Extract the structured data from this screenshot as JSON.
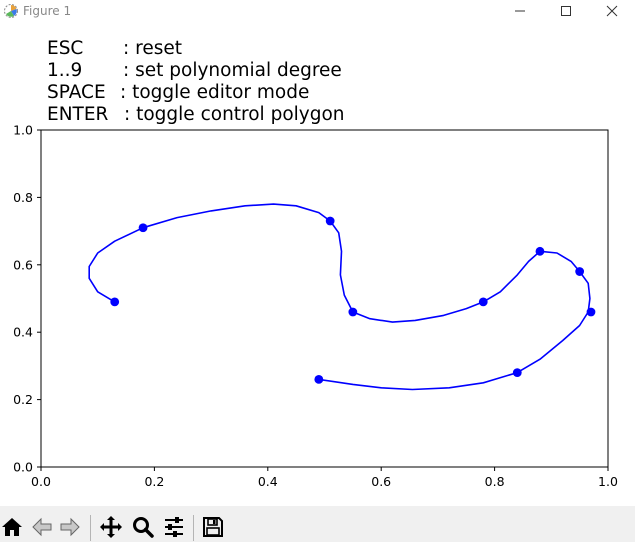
{
  "window": {
    "title": "Figure 1"
  },
  "help": [
    {
      "key": "ESC",
      "desc": ": reset"
    },
    {
      "key": "1..9",
      "desc": ": set polynomial degree"
    },
    {
      "key": "SPACE",
      "desc": ": toggle editor mode"
    },
    {
      "key": "ENTER",
      "desc": ": toggle control polygon"
    }
  ],
  "chart_data": {
    "type": "line",
    "xlim": [
      0.0,
      1.0
    ],
    "ylim": [
      0.0,
      1.0
    ],
    "xticks": [
      "0.0",
      "0.2",
      "0.4",
      "0.6",
      "0.8",
      "1.0"
    ],
    "yticks": [
      "0.0",
      "0.2",
      "0.4",
      "0.6",
      "0.8",
      "1.0"
    ],
    "grid": false,
    "series_color": "#0000ff",
    "points": [
      {
        "x": 0.13,
        "y": 0.49
      },
      {
        "x": 0.18,
        "y": 0.71
      },
      {
        "x": 0.51,
        "y": 0.73
      },
      {
        "x": 0.55,
        "y": 0.46
      },
      {
        "x": 0.78,
        "y": 0.49
      },
      {
        "x": 0.88,
        "y": 0.64
      },
      {
        "x": 0.95,
        "y": 0.58
      },
      {
        "x": 0.97,
        "y": 0.46
      },
      {
        "x": 0.84,
        "y": 0.28
      },
      {
        "x": 0.49,
        "y": 0.26
      }
    ],
    "curve": [
      [
        0.13,
        0.49
      ],
      [
        0.1,
        0.52
      ],
      [
        0.085,
        0.56
      ],
      [
        0.085,
        0.595
      ],
      [
        0.1,
        0.635
      ],
      [
        0.13,
        0.67
      ],
      [
        0.18,
        0.71
      ],
      [
        0.24,
        0.74
      ],
      [
        0.3,
        0.76
      ],
      [
        0.36,
        0.775
      ],
      [
        0.41,
        0.78
      ],
      [
        0.45,
        0.775
      ],
      [
        0.49,
        0.755
      ],
      [
        0.51,
        0.73
      ],
      [
        0.525,
        0.695
      ],
      [
        0.53,
        0.64
      ],
      [
        0.528,
        0.57
      ],
      [
        0.535,
        0.51
      ],
      [
        0.55,
        0.46
      ],
      [
        0.58,
        0.44
      ],
      [
        0.62,
        0.43
      ],
      [
        0.66,
        0.435
      ],
      [
        0.71,
        0.45
      ],
      [
        0.75,
        0.47
      ],
      [
        0.78,
        0.49
      ],
      [
        0.81,
        0.52
      ],
      [
        0.84,
        0.57
      ],
      [
        0.86,
        0.61
      ],
      [
        0.88,
        0.64
      ],
      [
        0.91,
        0.635
      ],
      [
        0.935,
        0.61
      ],
      [
        0.95,
        0.58
      ],
      [
        0.965,
        0.545
      ],
      [
        0.968,
        0.5
      ],
      [
        0.965,
        0.46
      ],
      [
        0.95,
        0.42
      ],
      [
        0.92,
        0.375
      ],
      [
        0.88,
        0.32
      ],
      [
        0.84,
        0.28
      ],
      [
        0.78,
        0.25
      ],
      [
        0.72,
        0.235
      ],
      [
        0.655,
        0.23
      ],
      [
        0.6,
        0.235
      ],
      [
        0.55,
        0.245
      ],
      [
        0.49,
        0.26
      ]
    ]
  },
  "toolbar": {
    "buttons": [
      {
        "icon": "home-icon"
      },
      {
        "icon": "back-arrow-icon"
      },
      {
        "icon": "forward-arrow-icon"
      },
      {
        "icon": "pan-icon"
      },
      {
        "icon": "zoom-icon"
      },
      {
        "icon": "configure-subplots-icon"
      },
      {
        "icon": "save-icon"
      }
    ]
  }
}
